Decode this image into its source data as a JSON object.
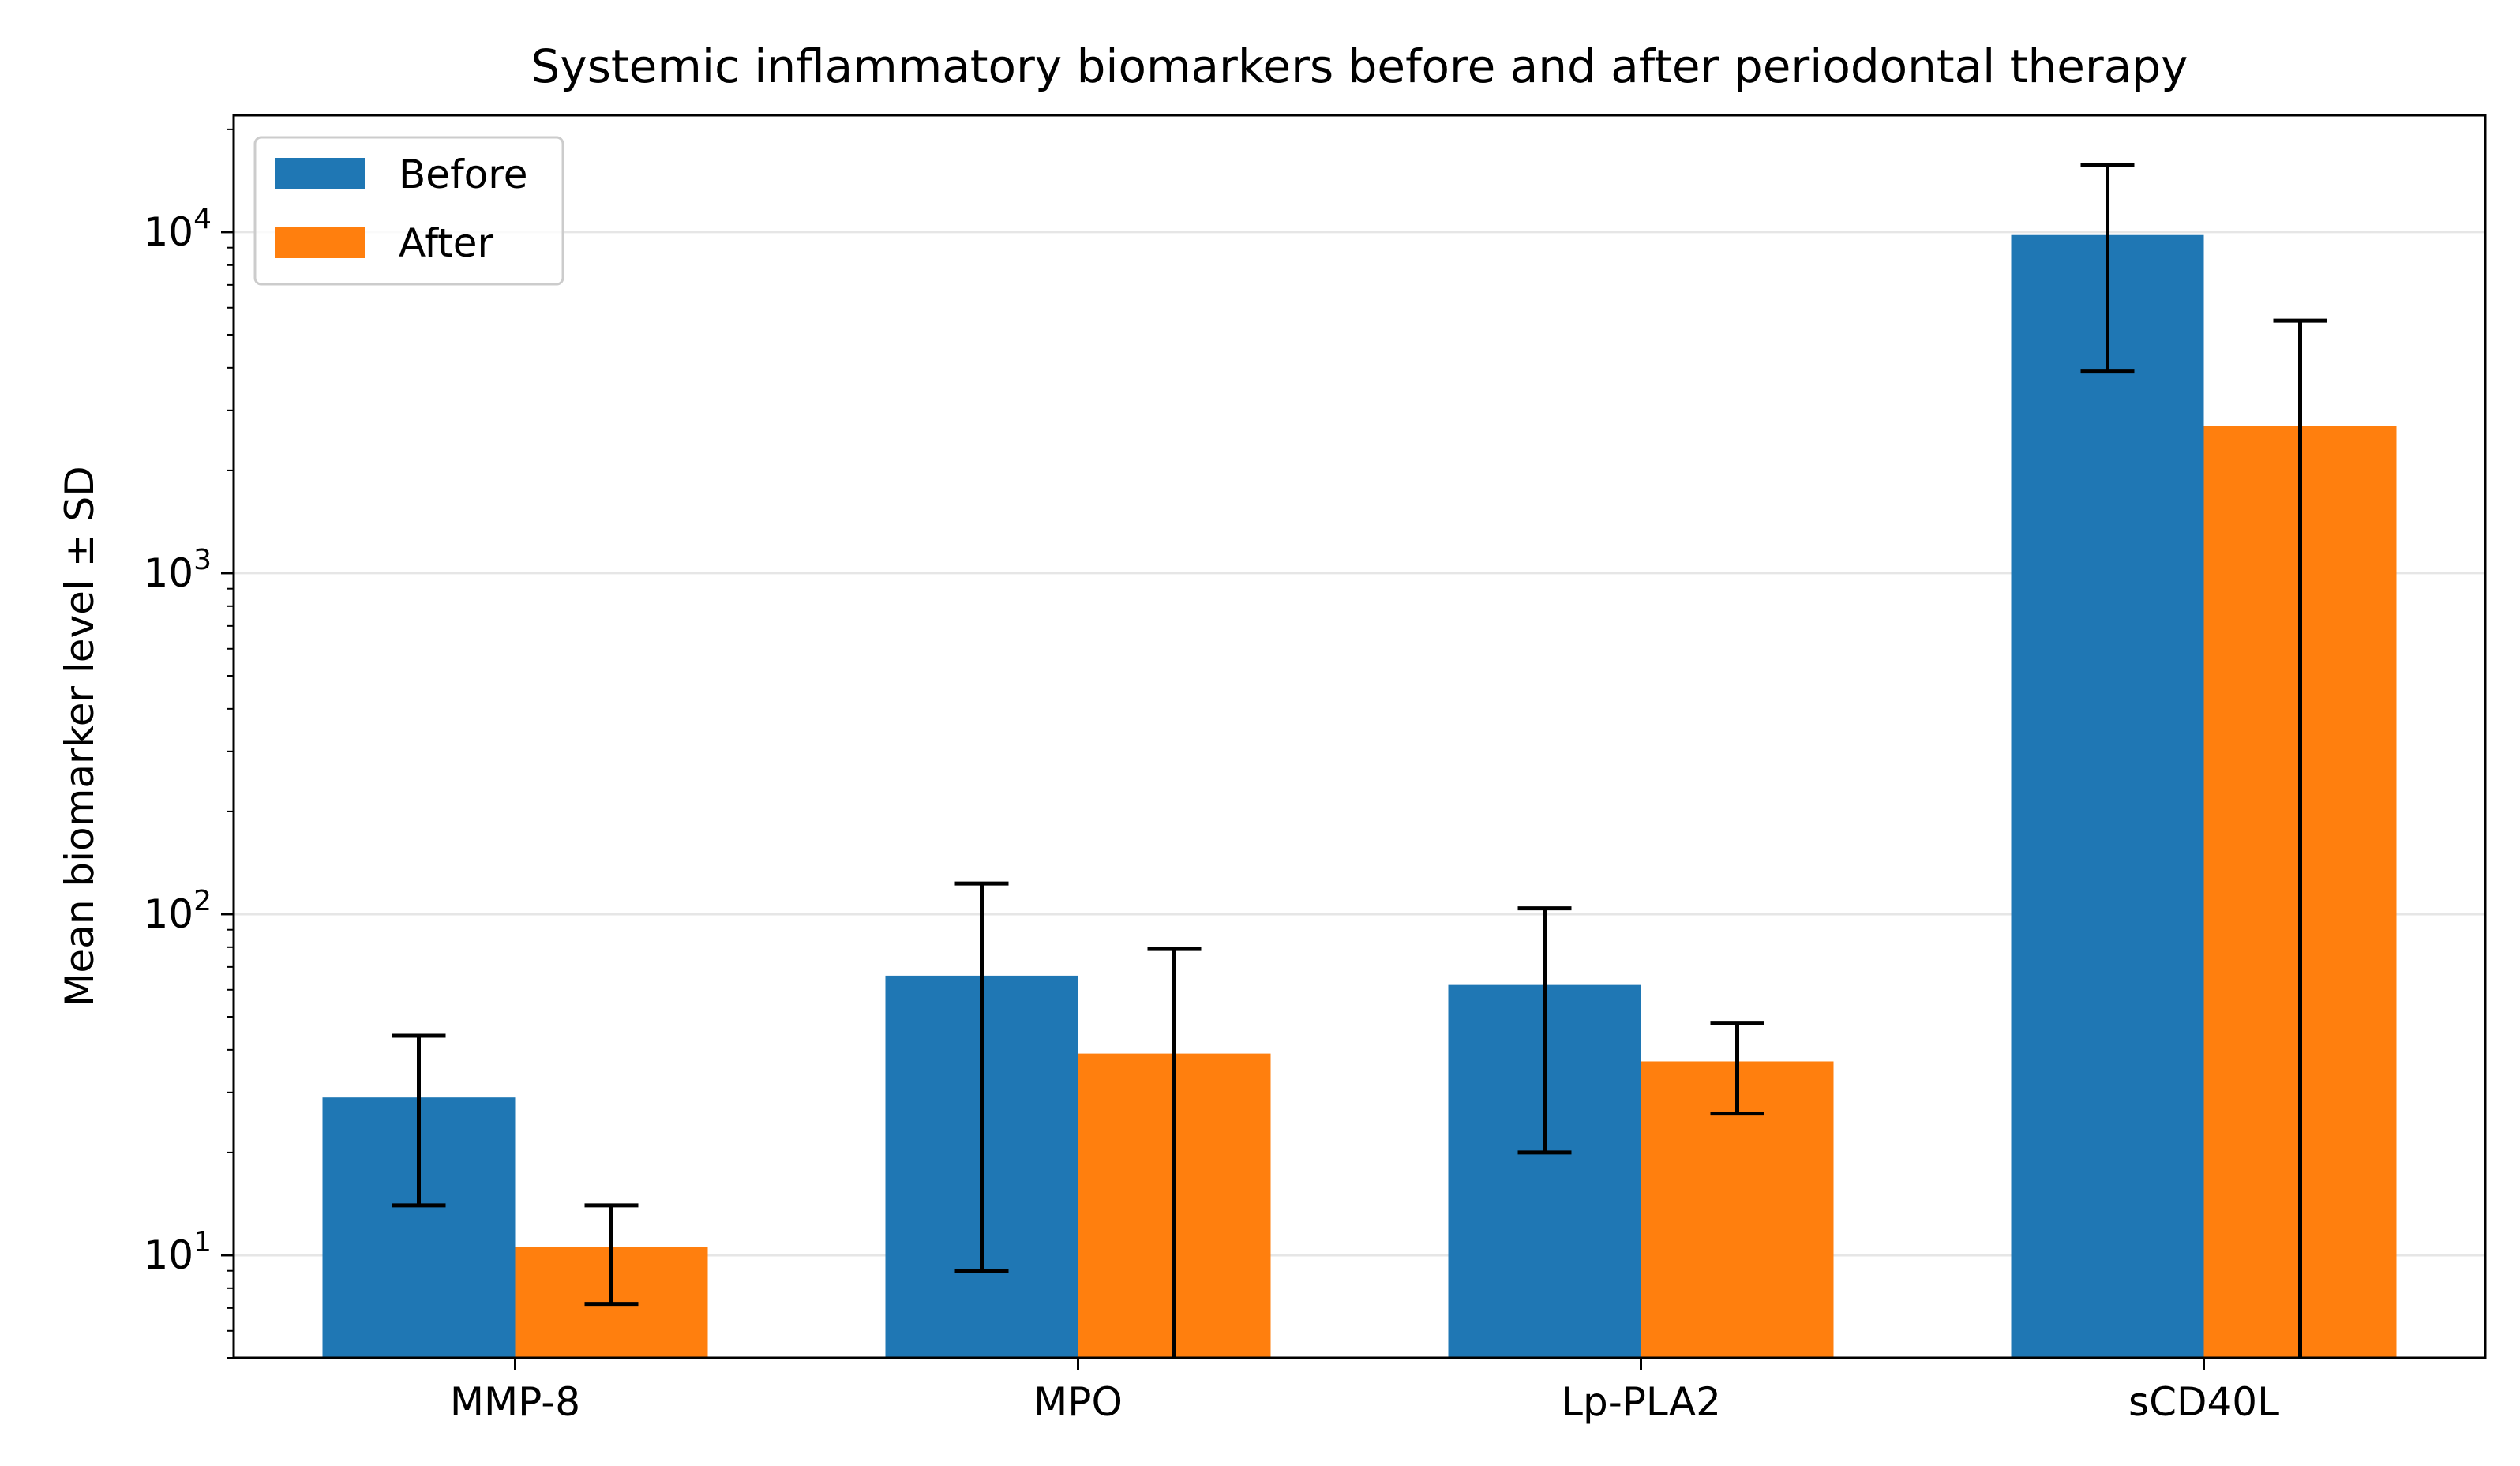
{
  "chart_data": {
    "type": "bar",
    "title": "Systemic inflammatory biomarkers before and after periodontal therapy",
    "xlabel": "",
    "ylabel": "Mean biomarker level ± SD",
    "yscale": "log",
    "ylim": [
      5,
      22000
    ],
    "y_ticks": [
      {
        "value": 10,
        "base": "10",
        "exp": "1"
      },
      {
        "value": 100,
        "base": "10",
        "exp": "2"
      },
      {
        "value": 1000,
        "base": "10",
        "exp": "3"
      },
      {
        "value": 10000,
        "base": "10",
        "exp": "4"
      }
    ],
    "grid": "horizontal major",
    "legend_position": "top-left",
    "categories": [
      "MMP-8",
      "MPO",
      "Lp-PLA2",
      "sCD40L"
    ],
    "series": [
      {
        "name": "Before",
        "color": "#1f77b4",
        "values": [
          29,
          66,
          62,
          9800
        ],
        "sd": [
          15,
          57,
          42,
          5900
        ]
      },
      {
        "name": "After",
        "color": "#ff7f0e",
        "values": [
          10.6,
          39,
          37,
          2700
        ],
        "sd": [
          3.4,
          40,
          11,
          2800
        ]
      }
    ]
  }
}
